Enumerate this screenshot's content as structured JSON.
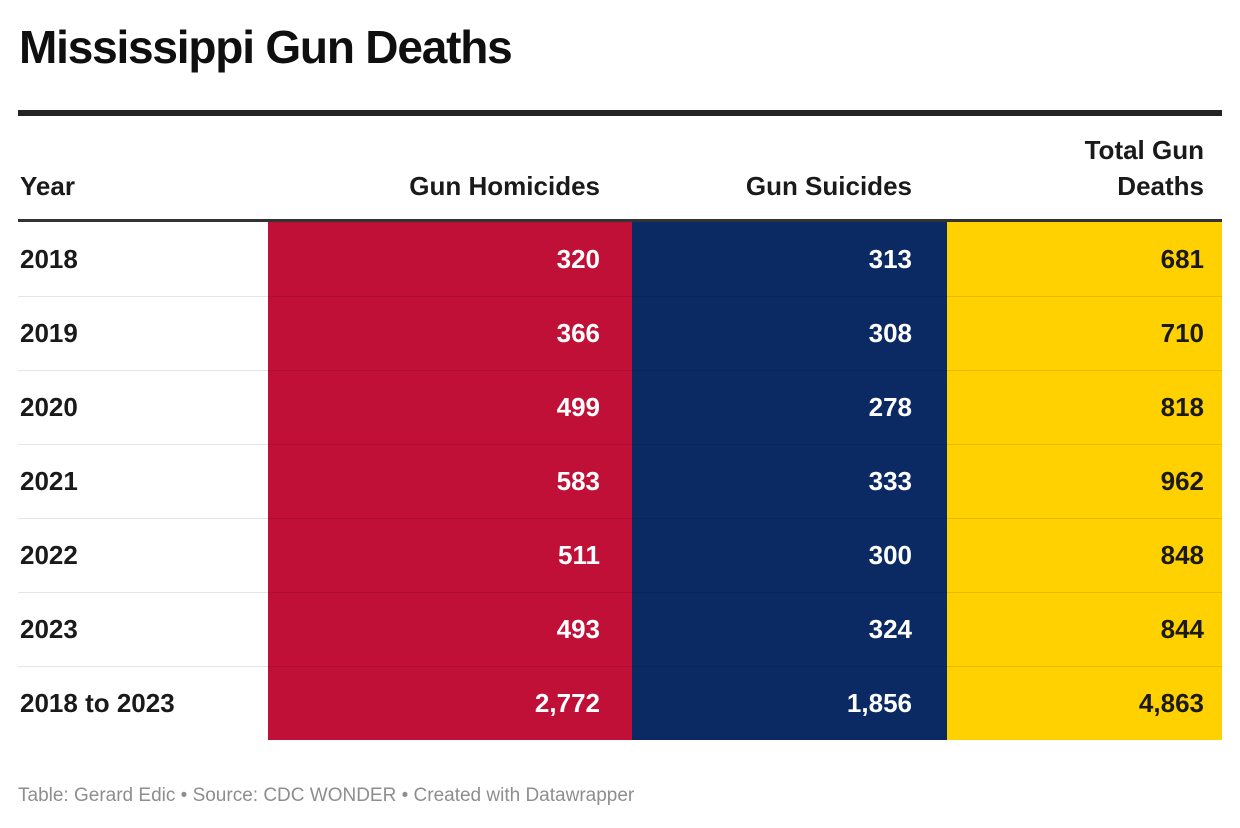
{
  "title": "Mississippi Gun Deaths",
  "colors": {
    "homicides": "#C11037",
    "suicides": "#0B2A63",
    "total": "#FFD100",
    "header_text": "#1A1A1A",
    "footer_text": "#8E8E8E",
    "rule": "#242424"
  },
  "table": {
    "columns": {
      "year": "Year",
      "homicides": "Gun Homicides",
      "suicides": "Gun Suicides",
      "total": "Total Gun Deaths"
    },
    "rows": [
      {
        "year": "2018",
        "homicides": "320",
        "suicides": "313",
        "total": "681"
      },
      {
        "year": "2019",
        "homicides": "366",
        "suicides": "308",
        "total": "710"
      },
      {
        "year": "2020",
        "homicides": "499",
        "suicides": "278",
        "total": "818"
      },
      {
        "year": "2021",
        "homicides": "583",
        "suicides": "333",
        "total": "962"
      },
      {
        "year": "2022",
        "homicides": "511",
        "suicides": "300",
        "total": "848"
      },
      {
        "year": "2023",
        "homicides": "493",
        "suicides": "324",
        "total": "844"
      },
      {
        "year": "2018 to 2023",
        "homicides": "2,772",
        "suicides": "1,856",
        "total": "4,863"
      }
    ]
  },
  "footer": {
    "text": "Table: Gerard Edic • Source: CDC WONDER • Created with Datawrapper"
  },
  "chart_data": {
    "type": "table",
    "title": "Mississippi Gun Deaths",
    "categories": [
      "2018",
      "2019",
      "2020",
      "2021",
      "2022",
      "2023",
      "2018 to 2023"
    ],
    "series": [
      {
        "name": "Gun Homicides",
        "values": [
          320,
          366,
          499,
          583,
          511,
          493,
          2772
        ]
      },
      {
        "name": "Gun Suicides",
        "values": [
          313,
          308,
          278,
          333,
          300,
          324,
          1856
        ]
      },
      {
        "name": "Total Gun Deaths",
        "values": [
          681,
          710,
          818,
          962,
          848,
          844,
          4863
        ]
      }
    ],
    "layout": {
      "column_colors": {
        "Gun Homicides": "#C11037",
        "Gun Suicides": "#0B2A63",
        "Total Gun Deaths": "#FFD100"
      },
      "value_alignment": "right",
      "header_position": "top"
    }
  }
}
